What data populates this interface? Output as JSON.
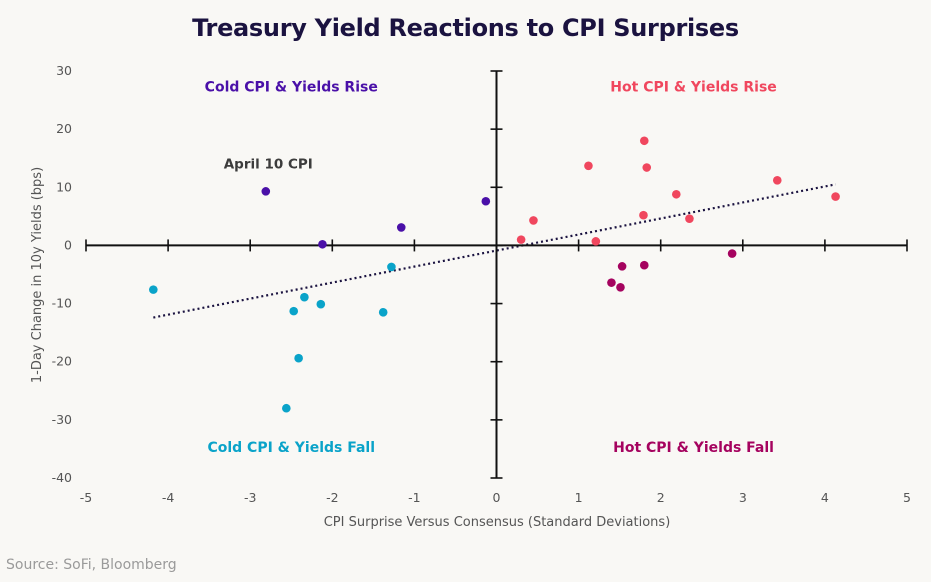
{
  "chart_data": {
    "type": "scatter",
    "title": "Treasury Yield Reactions to CPI Surprises",
    "xlabel": "CPI Surprise Versus Consensus (Standard Deviations)",
    "ylabel": "1-Day Change in 10y Yields (bps)",
    "xlim": [
      -5,
      5
    ],
    "ylim": [
      -40,
      30
    ],
    "xticks": [
      -5,
      -4,
      -3,
      -2,
      -1,
      0,
      1,
      2,
      3,
      4,
      5
    ],
    "yticks": [
      30,
      20,
      10,
      0,
      -10,
      -20,
      -30,
      -40
    ],
    "grid": false,
    "series": [
      {
        "name": "Cold CPI & Yields Rise",
        "color": "#4a10a8",
        "points": [
          [
            -2.81,
            9.3
          ],
          [
            -2.12,
            0.2
          ],
          [
            -1.16,
            3.1
          ],
          [
            -0.13,
            7.6
          ]
        ]
      },
      {
        "name": "Hot CPI & Yields Rise",
        "color": "#f0475e",
        "points": [
          [
            0.3,
            1.0
          ],
          [
            0.45,
            4.3
          ],
          [
            1.12,
            13.7
          ],
          [
            1.21,
            0.7
          ],
          [
            1.79,
            5.2
          ],
          [
            1.8,
            18.0
          ],
          [
            1.83,
            13.4
          ],
          [
            2.19,
            8.8
          ],
          [
            2.35,
            4.6
          ],
          [
            3.42,
            11.2
          ],
          [
            4.13,
            8.4
          ]
        ]
      },
      {
        "name": "Cold CPI & Yields Fall",
        "color": "#0aa3c9",
        "points": [
          [
            -4.18,
            -7.6
          ],
          [
            -2.56,
            -28.0
          ],
          [
            -2.47,
            -11.3
          ],
          [
            -2.41,
            -19.4
          ],
          [
            -2.34,
            -8.9
          ],
          [
            -2.14,
            -10.1
          ],
          [
            -1.38,
            -11.5
          ],
          [
            -1.28,
            -3.7
          ]
        ]
      },
      {
        "name": "Hot CPI & Yields Fall",
        "color": "#a5035f",
        "points": [
          [
            1.4,
            -6.4
          ],
          [
            1.51,
            -7.2
          ],
          [
            1.53,
            -3.6
          ],
          [
            1.8,
            -3.4
          ],
          [
            2.87,
            -1.4
          ]
        ]
      }
    ],
    "trendline": {
      "style": "dotted",
      "color": "#1b1340",
      "from": [
        -4.18,
        -12.4
      ],
      "to": [
        4.13,
        10.5
      ]
    },
    "quadrant_labels": [
      {
        "text": "Cold CPI & Yields Rise",
        "color": "#4a10a8",
        "x": -2.5,
        "y": 26.5
      },
      {
        "text": "Hot CPI & Yields Rise",
        "color": "#f0475e",
        "x": 2.4,
        "y": 26.5
      },
      {
        "text": "Cold CPI & Yields Fall",
        "color": "#0aa3c9",
        "x": -2.5,
        "y": -35.5
      },
      {
        "text": "Hot CPI & Yields Fall",
        "color": "#a5035f",
        "x": 2.4,
        "y": -35.5
      }
    ],
    "annotations": [
      {
        "text": "April 10 CPI",
        "x": -2.78,
        "y": 13.2
      }
    ]
  },
  "footer": {
    "source": "Source: SoFi, Bloomberg"
  }
}
